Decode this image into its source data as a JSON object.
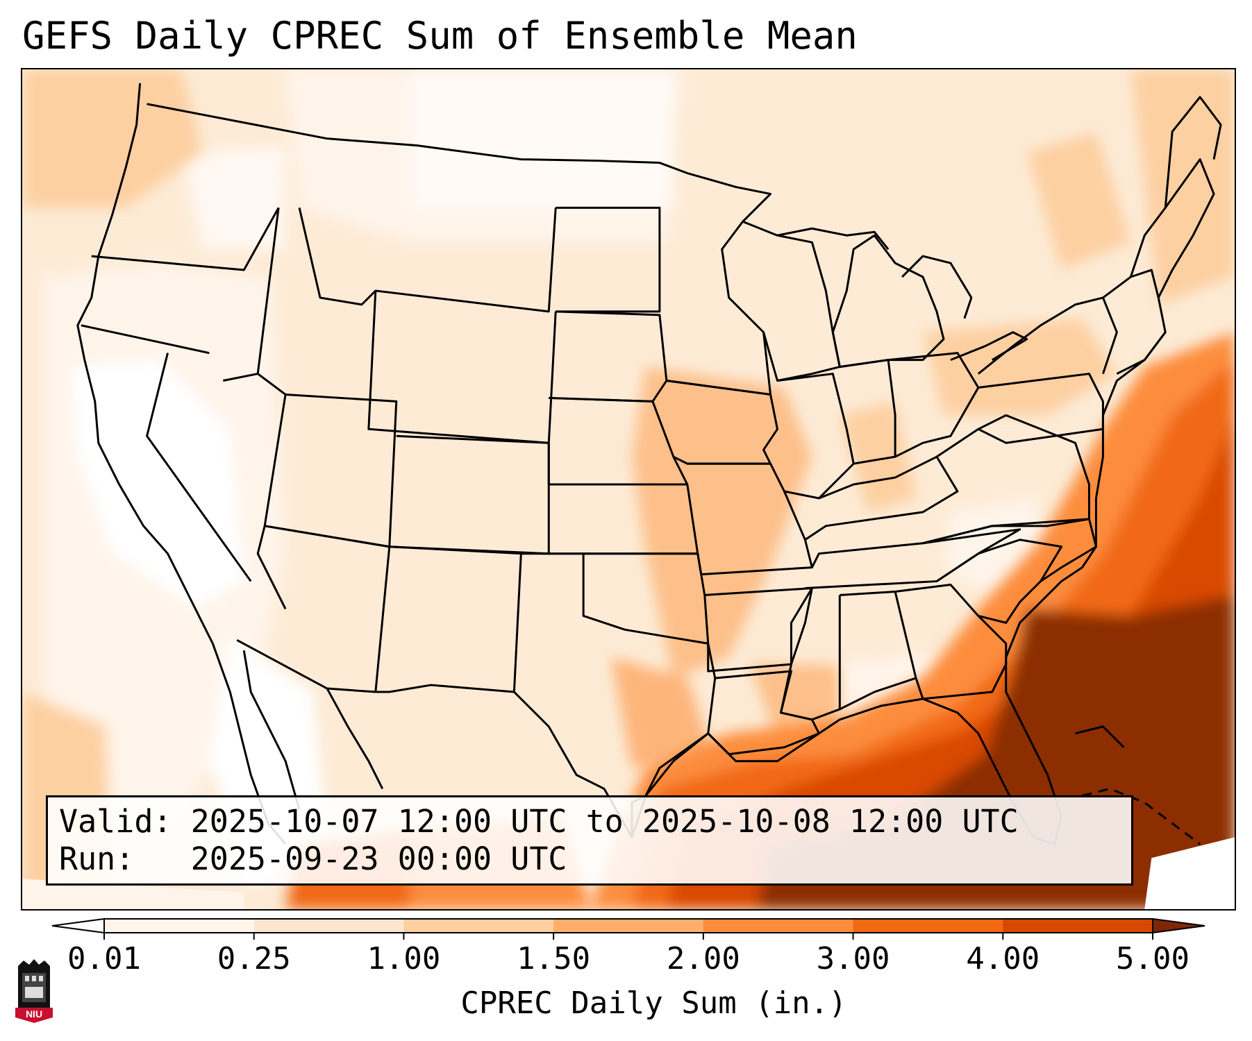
{
  "title": "GEFS Daily CPREC Sum of Ensemble Mean",
  "info": {
    "valid_label": "Valid:",
    "valid_value": "2025-10-07 12:00 UTC to 2025-10-08 12:00 UTC",
    "run_label": "Run:",
    "run_value": "2025-09-23 00:00 UTC"
  },
  "colorbar": {
    "label": "CPREC Daily Sum (in.)",
    "ticks": [
      "0.01",
      "0.25",
      "1.00",
      "1.50",
      "2.00",
      "3.00",
      "4.00",
      "5.00"
    ],
    "colors": [
      "#fff5eb",
      "#fee6ce",
      "#fdd0a2",
      "#fdae6b",
      "#fd8d3c",
      "#f16913",
      "#d94801",
      "#8c2d04"
    ],
    "under_color": "#ffffff",
    "over_color": "#7f2704",
    "extend": "both"
  },
  "logo": {
    "text": "NIU",
    "color": "#c8102e"
  }
}
